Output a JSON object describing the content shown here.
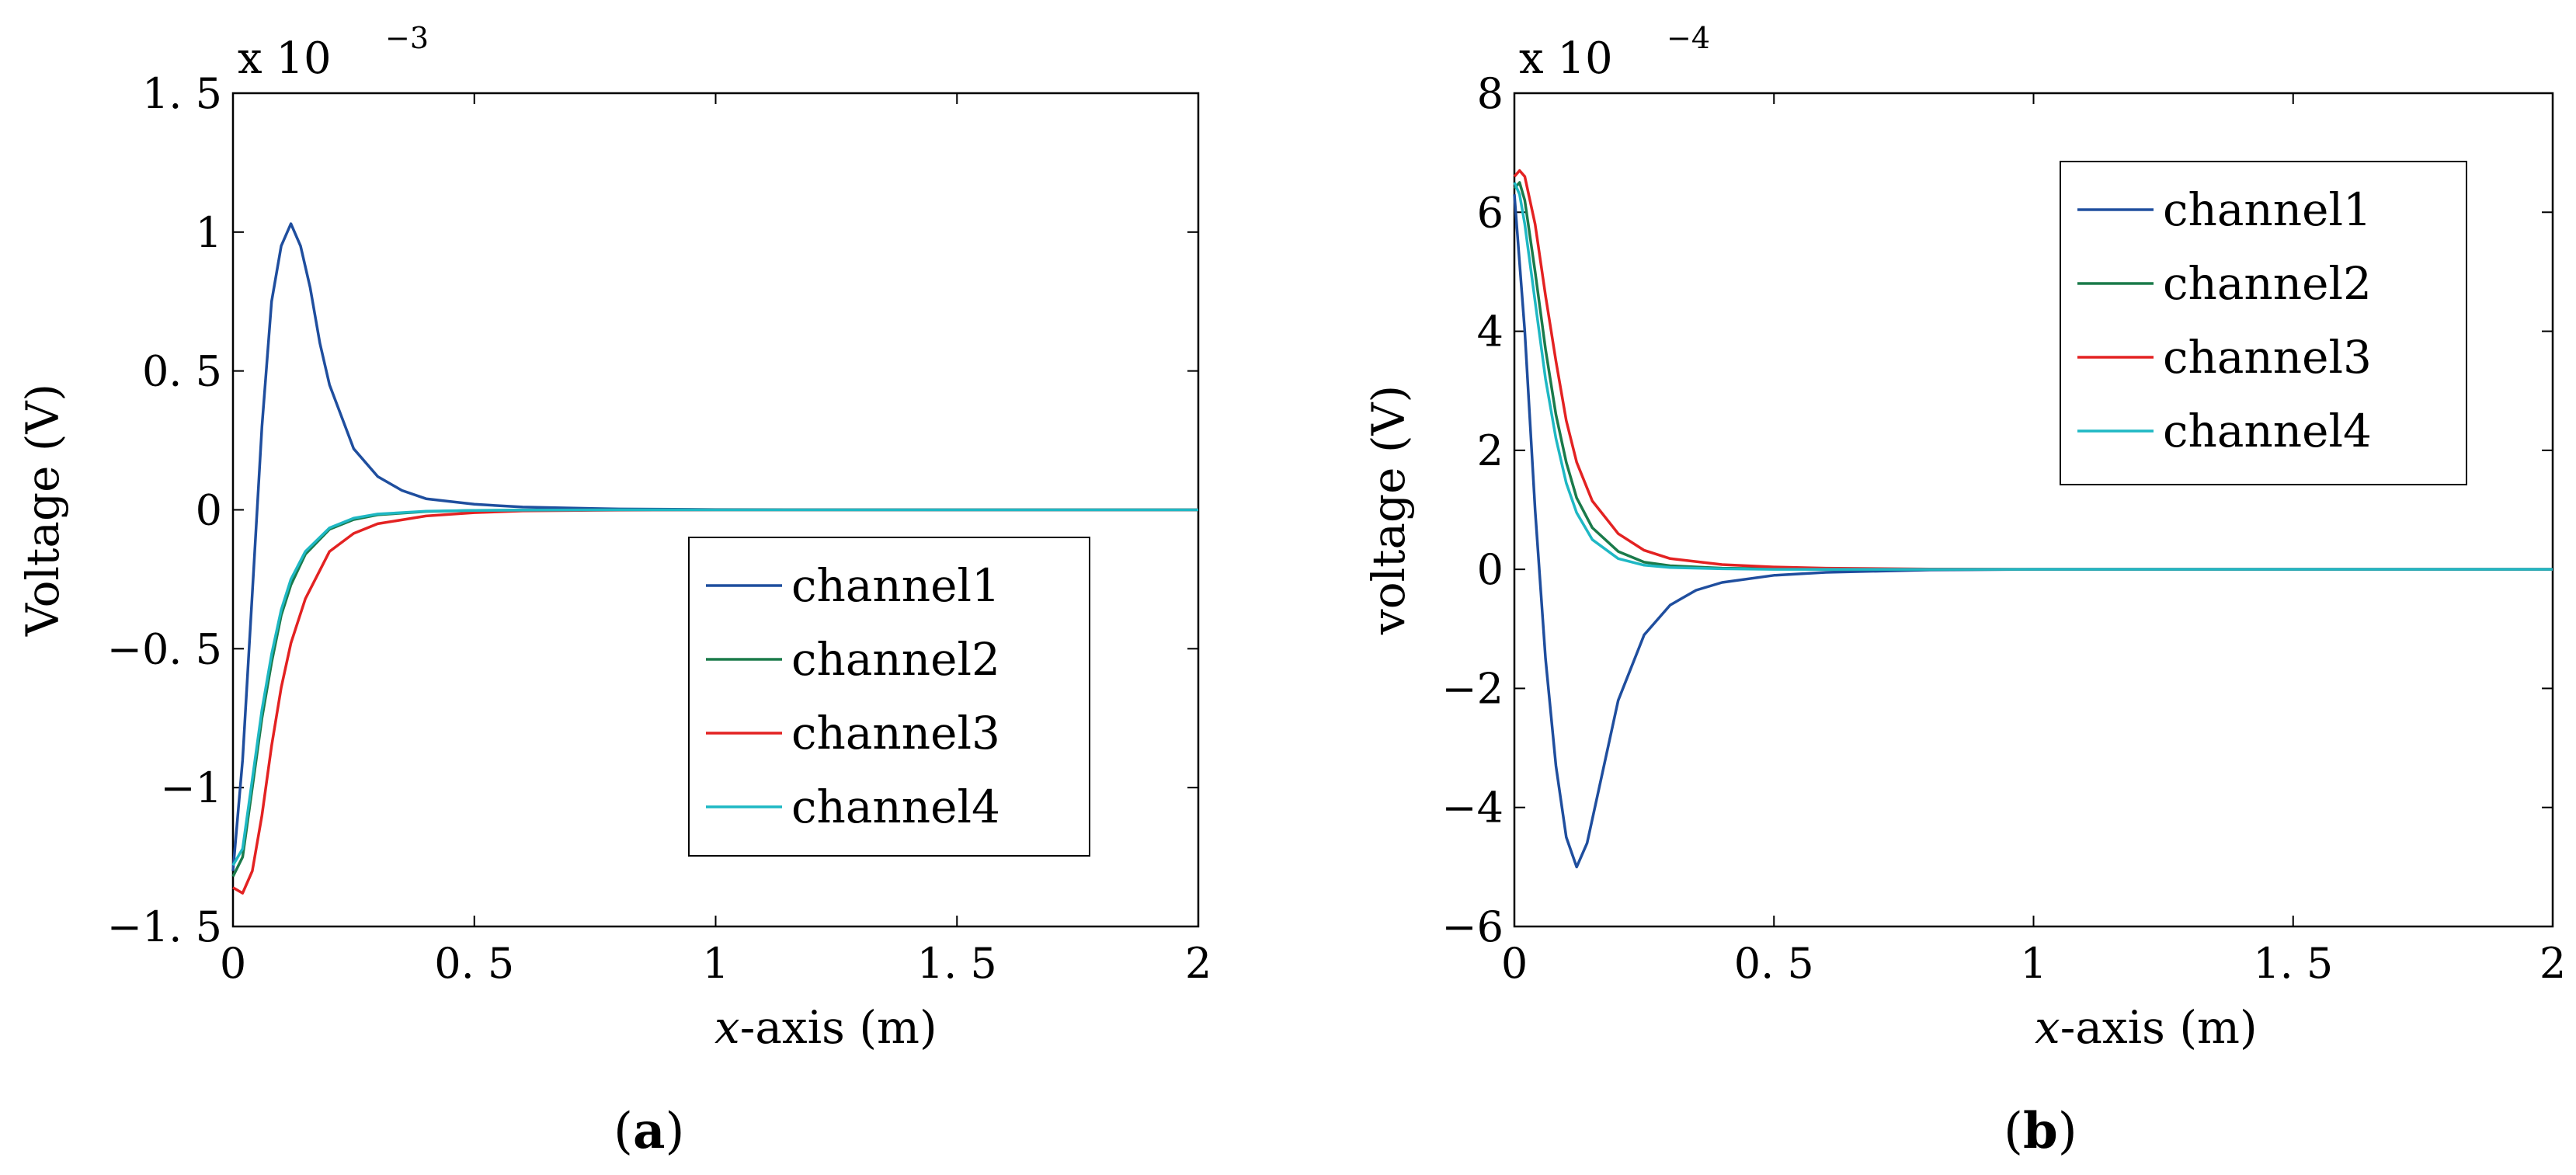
{
  "chart_data": [
    {
      "type": "line",
      "panel_label": "(a)",
      "panel_letter": "a",
      "xlabel_var": "x",
      "xlabel_rest": "-axis (m)",
      "ylabel": "Voltage (V)",
      "multiplier_base": "x  10",
      "multiplier_exp": "−3",
      "xlim": [
        0,
        2
      ],
      "ylim": [
        -1.5,
        1.5
      ],
      "xticks": [
        0,
        0.5,
        1,
        1.5,
        2
      ],
      "xtick_labels": [
        "0",
        "0. 5",
        "1",
        "1. 5",
        "2"
      ],
      "yticks": [
        -1.5,
        -1,
        -0.5,
        0,
        0.5,
        1,
        1.5
      ],
      "ytick_labels": [
        "−1. 5",
        "−1",
        "−0. 5",
        "0",
        "0. 5",
        "1",
        "1. 5"
      ],
      "legend_position": "center-right",
      "series": [
        {
          "name": "channel1",
          "color": "#1f4e9e",
          "x": [
            0,
            0.02,
            0.04,
            0.06,
            0.08,
            0.1,
            0.12,
            0.14,
            0.16,
            0.18,
            0.2,
            0.25,
            0.3,
            0.35,
            0.4,
            0.5,
            0.6,
            0.8,
            1.0,
            1.5,
            2.0
          ],
          "y": [
            -1.3,
            -0.9,
            -0.3,
            0.3,
            0.75,
            0.95,
            1.03,
            0.95,
            0.8,
            0.6,
            0.45,
            0.22,
            0.12,
            0.07,
            0.04,
            0.02,
            0.01,
            0.003,
            0.001,
            0,
            0
          ]
        },
        {
          "name": "channel2",
          "color": "#1a7a4a",
          "x": [
            0,
            0.02,
            0.04,
            0.06,
            0.08,
            0.1,
            0.12,
            0.15,
            0.2,
            0.25,
            0.3,
            0.4,
            0.5,
            0.6,
            0.8,
            1.0,
            1.5,
            2.0
          ],
          "y": [
            -1.32,
            -1.25,
            -1.0,
            -0.75,
            -0.55,
            -0.38,
            -0.27,
            -0.16,
            -0.07,
            -0.035,
            -0.018,
            -0.006,
            -0.002,
            -0.001,
            0,
            0,
            0,
            0
          ]
        },
        {
          "name": "channel3",
          "color": "#e32222",
          "x": [
            0,
            0.02,
            0.04,
            0.06,
            0.08,
            0.1,
            0.12,
            0.15,
            0.2,
            0.25,
            0.3,
            0.4,
            0.5,
            0.6,
            0.8,
            1.0,
            1.5,
            2.0
          ],
          "y": [
            -1.36,
            -1.38,
            -1.3,
            -1.1,
            -0.85,
            -0.64,
            -0.48,
            -0.32,
            -0.15,
            -0.085,
            -0.05,
            -0.022,
            -0.01,
            -0.004,
            -0.001,
            0,
            0,
            0
          ]
        },
        {
          "name": "channel4",
          "color": "#1fb8c4",
          "x": [
            0,
            0.02,
            0.04,
            0.06,
            0.08,
            0.1,
            0.12,
            0.15,
            0.2,
            0.25,
            0.3,
            0.4,
            0.5,
            0.6,
            0.8,
            1.0,
            1.5,
            2.0
          ],
          "y": [
            -1.28,
            -1.22,
            -0.97,
            -0.72,
            -0.52,
            -0.36,
            -0.25,
            -0.15,
            -0.065,
            -0.03,
            -0.015,
            -0.005,
            -0.002,
            -0.001,
            0,
            0,
            0,
            0
          ]
        }
      ]
    },
    {
      "type": "line",
      "panel_label": "(b)",
      "panel_letter": "b",
      "xlabel_var": "x",
      "xlabel_rest": "-axis (m)",
      "ylabel": "voltage (V)",
      "multiplier_base": "x  10",
      "multiplier_exp": "−4",
      "xlim": [
        0,
        2
      ],
      "ylim": [
        -6,
        8
      ],
      "xticks": [
        0,
        0.5,
        1,
        1.5,
        2
      ],
      "xtick_labels": [
        "0",
        "0. 5",
        "1",
        "1. 5",
        "2"
      ],
      "yticks": [
        -6,
        -4,
        -2,
        0,
        2,
        4,
        6,
        8
      ],
      "ytick_labels": [
        "−6",
        "−4",
        "−2",
        "0",
        "2",
        "4",
        "6",
        "8"
      ],
      "legend_position": "top-right",
      "series": [
        {
          "name": "channel1",
          "color": "#1f4e9e",
          "x": [
            0,
            0.02,
            0.04,
            0.06,
            0.08,
            0.1,
            0.12,
            0.14,
            0.16,
            0.2,
            0.25,
            0.3,
            0.35,
            0.4,
            0.5,
            0.6,
            0.8,
            1.0,
            1.5,
            2.0
          ],
          "y": [
            6.3,
            4.0,
            1.0,
            -1.5,
            -3.3,
            -4.5,
            -5.0,
            -4.6,
            -3.8,
            -2.2,
            -1.1,
            -0.6,
            -0.35,
            -0.22,
            -0.1,
            -0.05,
            -0.01,
            0,
            0,
            0
          ]
        },
        {
          "name": "channel2",
          "color": "#1a7a4a",
          "x": [
            0,
            0.01,
            0.02,
            0.04,
            0.06,
            0.08,
            0.1,
            0.12,
            0.15,
            0.2,
            0.25,
            0.3,
            0.4,
            0.5,
            0.6,
            0.8,
            1.0,
            1.5,
            2.0
          ],
          "y": [
            6.4,
            6.5,
            6.2,
            5.0,
            3.7,
            2.6,
            1.8,
            1.2,
            0.7,
            0.3,
            0.12,
            0.06,
            0.02,
            0.01,
            0,
            0,
            0,
            0,
            0
          ]
        },
        {
          "name": "channel3",
          "color": "#e32222",
          "x": [
            0,
            0.01,
            0.02,
            0.04,
            0.06,
            0.08,
            0.1,
            0.12,
            0.15,
            0.2,
            0.25,
            0.3,
            0.4,
            0.5,
            0.6,
            0.8,
            1.0,
            1.5,
            2.0
          ],
          "y": [
            6.6,
            6.7,
            6.6,
            5.8,
            4.6,
            3.5,
            2.5,
            1.8,
            1.15,
            0.6,
            0.32,
            0.18,
            0.08,
            0.04,
            0.02,
            0.005,
            0,
            0,
            0
          ]
        },
        {
          "name": "channel4",
          "color": "#1fb8c4",
          "x": [
            0,
            0.01,
            0.02,
            0.04,
            0.06,
            0.08,
            0.1,
            0.12,
            0.15,
            0.2,
            0.25,
            0.3,
            0.4,
            0.5,
            0.6,
            0.8,
            1.0,
            1.5,
            2.0
          ],
          "y": [
            6.5,
            6.3,
            5.8,
            4.5,
            3.2,
            2.2,
            1.45,
            0.95,
            0.5,
            0.18,
            0.07,
            0.03,
            0.01,
            0,
            0,
            0,
            0,
            0,
            0
          ]
        }
      ]
    }
  ]
}
